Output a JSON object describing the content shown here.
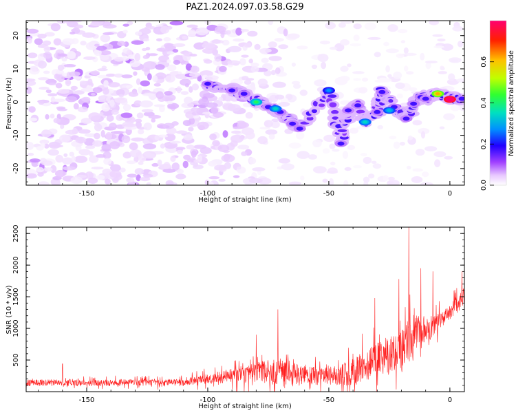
{
  "chart_data": [
    {
      "type": "heatmap",
      "title": "PAZ1.2024.097.03.58.G29",
      "xlabel": "Height of straight line (km)",
      "ylabel": "Frequency (Hz)",
      "xlim": [
        -175,
        6
      ],
      "ylim": [
        -25,
        24.5
      ],
      "xticks": [
        -150,
        -100,
        -50,
        0
      ],
      "yticks": [
        20,
        10,
        0,
        -10,
        -20
      ],
      "colorbar": {
        "label": "Normalized spectral amplitude",
        "ticks": [
          0.0,
          0.2,
          0.4,
          0.6
        ],
        "range": [
          0,
          0.8
        ],
        "colormap": [
          "#ffffff",
          "#e8c8ff",
          "#a040ff",
          "#2000ff",
          "#0090ff",
          "#00e0c0",
          "#30ff30",
          "#c0ff00",
          "#ffc000",
          "#ff2000",
          "#ff0070"
        ]
      },
      "ridge_points": [
        {
          "x": -100,
          "y": 5.5
        },
        {
          "x": -90,
          "y": 3.5
        },
        {
          "x": -85,
          "y": 2.5
        },
        {
          "x": -80,
          "y": 0.2
        },
        {
          "x": -75,
          "y": -1.5
        },
        {
          "x": -70,
          "y": -3.0
        },
        {
          "x": -65,
          "y": -6.5
        },
        {
          "x": -62,
          "y": -8.0
        },
        {
          "x": -50,
          "y": 3.5
        },
        {
          "x": -45,
          "y": -12.5
        },
        {
          "x": -42,
          "y": -2.5
        },
        {
          "x": -38,
          "y": -1.0
        },
        {
          "x": -35,
          "y": -6.0
        },
        {
          "x": -30,
          "y": -3.0
        },
        {
          "x": -28,
          "y": 3.0
        },
        {
          "x": -23,
          "y": -1.5
        },
        {
          "x": -18,
          "y": -5.0
        },
        {
          "x": -15,
          "y": -0.5
        },
        {
          "x": -12,
          "y": 1.5
        },
        {
          "x": -10,
          "y": 1.0
        },
        {
          "x": -5,
          "y": 2.5
        },
        {
          "x": 0,
          "y": 1.0
        },
        {
          "x": 5,
          "y": 1.0
        }
      ],
      "hotspots": [
        {
          "x": -80,
          "y": 0.0,
          "amp": 0.35
        },
        {
          "x": -72,
          "y": -2.0,
          "amp": 0.3
        },
        {
          "x": -50,
          "y": 3.5,
          "amp": 0.25
        },
        {
          "x": -35,
          "y": -6.0,
          "amp": 0.3
        },
        {
          "x": -25,
          "y": -2.5,
          "amp": 0.28
        },
        {
          "x": -5,
          "y": 2.5,
          "amp": 0.5
        },
        {
          "x": 0,
          "y": 0.8,
          "amp": 0.75
        }
      ]
    },
    {
      "type": "line",
      "xlabel": "Height of straight line (km)",
      "ylabel": "SNR (10 * v/v)",
      "xlim": [
        -175,
        6
      ],
      "ylim": [
        0,
        2600
      ],
      "xticks": [
        -150,
        -100,
        -50,
        0
      ],
      "yticks": [
        500,
        1000,
        1500,
        2000,
        2500
      ],
      "color": "#ff2020",
      "envelope": [
        {
          "x": -175,
          "baseline": 140,
          "noise": 90
        },
        {
          "x": -150,
          "baseline": 140,
          "noise": 90
        },
        {
          "x": -110,
          "baseline": 150,
          "noise": 90
        },
        {
          "x": -95,
          "baseline": 230,
          "noise": 160
        },
        {
          "x": -80,
          "baseline": 300,
          "noise": 280
        },
        {
          "x": -70,
          "baseline": 320,
          "noise": 350
        },
        {
          "x": -60,
          "baseline": 250,
          "noise": 280
        },
        {
          "x": -50,
          "baseline": 250,
          "noise": 220
        },
        {
          "x": -40,
          "baseline": 320,
          "noise": 380
        },
        {
          "x": -30,
          "baseline": 500,
          "noise": 450
        },
        {
          "x": -20,
          "baseline": 650,
          "noise": 600
        },
        {
          "x": -15,
          "baseline": 900,
          "noise": 550
        },
        {
          "x": -8,
          "baseline": 1000,
          "noise": 300
        },
        {
          "x": 0,
          "baseline": 1250,
          "noise": 200
        },
        {
          "x": 6,
          "baseline": 1500,
          "noise": 250
        }
      ],
      "peaks": [
        {
          "x": -160,
          "y": 440
        },
        {
          "x": -80,
          "y": 900
        },
        {
          "x": -71,
          "y": 1300
        },
        {
          "x": -31,
          "y": 1480
        },
        {
          "x": -21,
          "y": 1780
        },
        {
          "x": -17,
          "y": 2600
        },
        {
          "x": -12,
          "y": 1950
        },
        {
          "x": -7,
          "y": 1900
        },
        {
          "x": 5,
          "y": 1900
        }
      ]
    }
  ]
}
